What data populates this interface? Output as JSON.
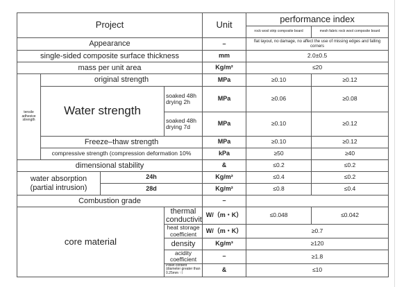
{
  "header": {
    "project": "Project",
    "unit": "Unit",
    "performance_index": "performance index",
    "col_rock_wool_strip": "rock wool strip composite board",
    "col_mesh_fabric": "mesh fabric rock wool composite board"
  },
  "rows": {
    "appearance": {
      "label": "Appearance",
      "unit": "–",
      "value": "flat layout, no damage, no affect the use of missing edges and falling corners"
    },
    "thickness": {
      "label": "single-sided composite surface thickness",
      "unit": "mm",
      "value": "2.0±0.5"
    },
    "mass": {
      "label": "mass per unit area",
      "unit": "Kg/m²",
      "value": "≤20"
    },
    "tensile_group": "tensile adhesive strength",
    "original": {
      "label": "original strength",
      "unit": "MPa",
      "v1": "≥0.10",
      "v2": "≥0.12"
    },
    "water_strength": "Water strength",
    "soaked_2h": {
      "label": "soaked 48h drying 2h",
      "unit": "MPa",
      "v1": "≥0.06",
      "v2": "≥0.08"
    },
    "soaked_7d": {
      "label": "soaked 48h drying 7d",
      "unit": "MPa",
      "v1": "≥0.10",
      "v2": "≥0.12"
    },
    "freeze_thaw": {
      "label": "Freeze–thaw strength",
      "unit": "MPa",
      "v1": "≥0.10",
      "v2": "≥0.12"
    },
    "compressive": {
      "label": "compressive strength (compression deformation 10%",
      "unit": "kPa",
      "v1": "≥50",
      "v2": "≥40"
    },
    "dimensional": {
      "label": "dimensional stability",
      "unit": "&",
      "v1": "≤0.2",
      "v2": "≤0.2"
    },
    "water_absorption": "water absorption (partial intrusion)",
    "wa_24h": {
      "label": "24h",
      "unit": "Kg/m²",
      "v1": "≤0.4",
      "v2": "≤0.2"
    },
    "wa_28d": {
      "label": "28d",
      "unit": "Kg/m²",
      "v1": "≤0.8",
      "v2": "≤0.4"
    },
    "combustion": {
      "label": "Combustion grade",
      "unit": "–"
    },
    "core_material": "core material",
    "thermal": {
      "label": "thermal conductivity",
      "unit": "W/（m・K）",
      "v1": "≤0.048",
      "v2": "≤0.042"
    },
    "heat_storage": {
      "label": "heat storage coefficient",
      "unit": "W/（m・K）",
      "value": "≥0.7"
    },
    "density": {
      "label": "density",
      "unit": "Kg/m³",
      "value": "≥120"
    },
    "acidity": {
      "label": "acidity coefficient",
      "unit": "–",
      "value": "≥1.8"
    },
    "pellet": {
      "label": "Pellet content (diameter greater than 0.25mm ∵）",
      "unit": "&",
      "value": "≤10"
    }
  }
}
